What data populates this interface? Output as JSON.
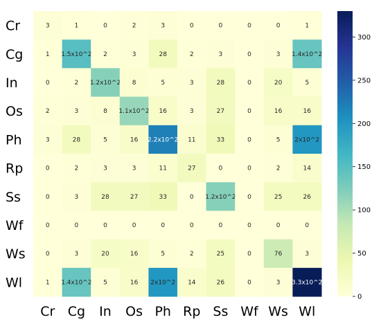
{
  "chart_data": {
    "type": "heatmap",
    "title": "",
    "xlabel": "",
    "ylabel": "",
    "x_categories": [
      "Cr",
      "Cg",
      "In",
      "Os",
      "Ph",
      "Rp",
      "Ss",
      "Wf",
      "Ws",
      "Wl"
    ],
    "y_categories": [
      "Cr",
      "Cg",
      "In",
      "Os",
      "Ph",
      "Rp",
      "Ss",
      "Wf",
      "Ws",
      "Wl"
    ],
    "values": [
      [
        3,
        1,
        0,
        2,
        3,
        0,
        0,
        0,
        0,
        1
      ],
      [
        1,
        150,
        2,
        3,
        28,
        2,
        3,
        0,
        3,
        140
      ],
      [
        0,
        2,
        120,
        8,
        5,
        3,
        28,
        0,
        20,
        5
      ],
      [
        2,
        3,
        8,
        110,
        16,
        3,
        27,
        0,
        16,
        16
      ],
      [
        3,
        28,
        5,
        16,
        220,
        11,
        33,
        0,
        5,
        200
      ],
      [
        0,
        2,
        3,
        3,
        11,
        27,
        0,
        0,
        2,
        14
      ],
      [
        0,
        3,
        28,
        27,
        33,
        0,
        120,
        0,
        25,
        26
      ],
      [
        0,
        0,
        0,
        0,
        0,
        0,
        0,
        0,
        0,
        0
      ],
      [
        0,
        3,
        20,
        16,
        5,
        2,
        25,
        0,
        76,
        3
      ],
      [
        1,
        140,
        5,
        16,
        200,
        14,
        26,
        0,
        3,
        330
      ]
    ],
    "annotations": [
      [
        "3",
        "1",
        "0",
        "2",
        "3",
        "0",
        "0",
        "0",
        "0",
        "1"
      ],
      [
        "1",
        "1.5x10^2",
        "2",
        "3",
        "28",
        "2",
        "3",
        "0",
        "3",
        "1.4x10^2"
      ],
      [
        "0",
        "2",
        "1.2x10^2",
        "8",
        "5",
        "3",
        "28",
        "0",
        "20",
        "5"
      ],
      [
        "2",
        "3",
        "8",
        "1.1x10^2",
        "16",
        "3",
        "27",
        "0",
        "16",
        "16"
      ],
      [
        "3",
        "28",
        "5",
        "16",
        "2.2x10^2",
        "11",
        "33",
        "0",
        "5",
        "2x10^2"
      ],
      [
        "0",
        "2",
        "3",
        "3",
        "11",
        "27",
        "0",
        "0",
        "2",
        "14"
      ],
      [
        "0",
        "3",
        "28",
        "27",
        "33",
        "0",
        "1.2x10^2",
        "0",
        "25",
        "26"
      ],
      [
        "0",
        "0",
        "0",
        "0",
        "0",
        "0",
        "0",
        "0",
        "0",
        "0"
      ],
      [
        "0",
        "3",
        "20",
        "16",
        "5",
        "2",
        "25",
        "0",
        "76",
        "3"
      ],
      [
        "1",
        "1.4x10^2",
        "5",
        "16",
        "2x10^2",
        "14",
        "26",
        "0",
        "3",
        "3.3x10^2"
      ]
    ],
    "colorbar": {
      "min": 0,
      "max": 330,
      "ticks": [
        0,
        50,
        100,
        150,
        200,
        250,
        300
      ],
      "tick_labels": [
        "0",
        "50",
        "100",
        "150",
        "200",
        "250",
        "300"
      ],
      "colormap": "YlGnBu"
    }
  }
}
